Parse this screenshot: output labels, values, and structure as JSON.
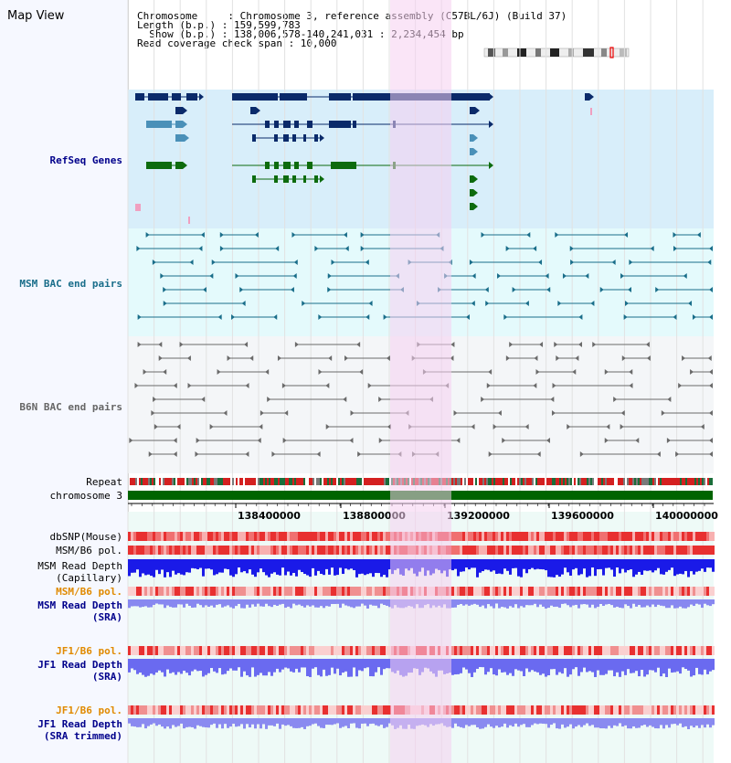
{
  "header": {
    "title": "Map View",
    "chromosome_line": "Chromosome     : Chromosome 3, reference assembly (C57BL/6J) (Build 37)",
    "length_line": "Length (b.p.) : 159,599,783",
    "show_line": "  Show (b.p.) : 138,006,578-140,241,031 : 2,234,454 bp",
    "coverage_line": "Read coverage check span : 10,000"
  },
  "tracks": {
    "refseq": "RefSeq Genes",
    "msm_bac": "MSM BAC end pairs",
    "b6n_bac": "B6N BAC end pairs",
    "repeat": "Repeat",
    "chromosome": "chromosome 3",
    "dbsnp": "dbSNP(Mouse)",
    "msm_b6_pol": "MSM/B6 pol.",
    "msm_depth_cap_1": "MSM Read Depth",
    "msm_depth_cap_2": "(Capillary)",
    "msm_b6_pol_2": "MSM/B6 pol.",
    "msm_depth_sra_1": "MSM Read Depth",
    "msm_depth_sra_2": "(SRA)",
    "jf1_b6_pol": "JF1/B6 pol.",
    "jf1_depth_sra_1": "JF1 Read Depth",
    "jf1_depth_sra_2": "(SRA)",
    "jf1_b6_pol_2": "JF1/B6 pol.",
    "jf1_depth_trim_1": "JF1 Read Depth",
    "jf1_depth_trim_2": "(SRA trimmed)"
  },
  "axis": {
    "ticks": [
      "138400000",
      "138800000",
      "139200000",
      "139600000",
      "140000000"
    ]
  },
  "colors": {
    "highlight": "#f5d0f0",
    "refseq_bg": "#d8eefa",
    "msm_bg": "#e4fafc",
    "b6n_bg": "#f4f6f8",
    "lower_bg": "#eefaf7",
    "label_blue": "#00008b",
    "label_teal": "#1a6e8a",
    "label_gray": "#666666",
    "label_orange": "#e08a00",
    "chromosome_green": "#006400"
  }
}
